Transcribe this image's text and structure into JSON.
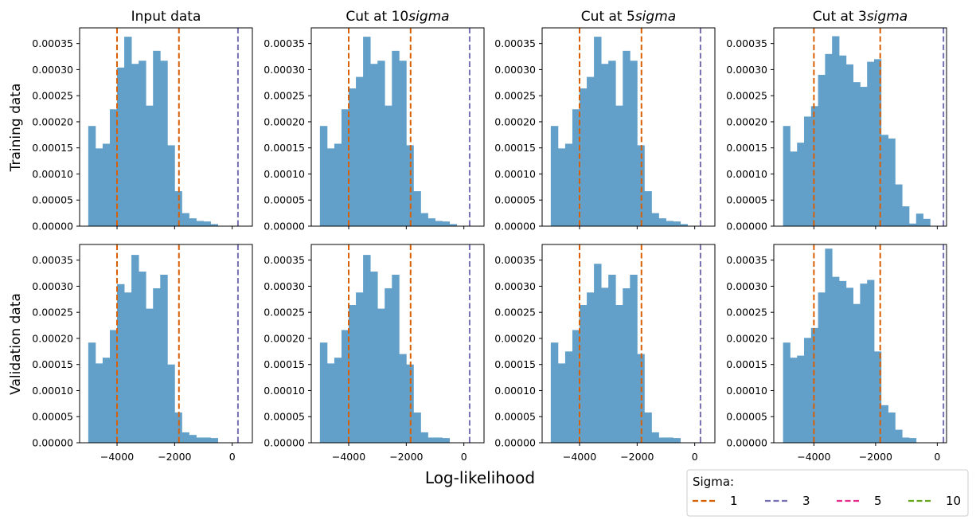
{
  "chart_data": {
    "type": "bar",
    "xlabel": "Log-likelihood",
    "row_labels": [
      "Training data",
      "Validation data"
    ],
    "column_titles": [
      {
        "text": "Input data",
        "sigma": null
      },
      {
        "text": "Cut at 10",
        "sigma": "sigma"
      },
      {
        "text": "Cut at 5",
        "sigma": "sigma"
      },
      {
        "text": "Cut at 3",
        "sigma": "sigma"
      }
    ],
    "ylim": [
      0,
      0.00038
    ],
    "yticks": [
      "0.00000",
      "0.00005",
      "0.00010",
      "0.00015",
      "0.00020",
      "0.00025",
      "0.00030",
      "0.00035"
    ],
    "ytick_values": [
      0,
      5e-05,
      0.0001,
      0.00015,
      0.0002,
      0.00025,
      0.0003,
      0.00035
    ],
    "xticks": [
      "−4000",
      "−2000",
      "0"
    ],
    "xtick_values": [
      -4000,
      -2000,
      0
    ],
    "bar_color": "#62a0ca",
    "sigma_lines": {
      "1": [
        -4000,
        -1850
      ],
      "3": [
        200
      ]
    },
    "legend": {
      "title": "Sigma:",
      "placement": "lower-right",
      "entries": [
        {
          "label": "1",
          "color": "#d95f02"
        },
        {
          "label": "3",
          "color": "#7570b3"
        },
        {
          "label": "5",
          "color": "#e7298a"
        },
        {
          "label": "10",
          "color": "#66a61e"
        }
      ]
    },
    "panels": [
      {
        "row": 0,
        "col": 0,
        "xlim": [
          -5300,
          700
        ],
        "bins": {
          "start": -5000,
          "width": 250
        },
        "values": [
          0.000192,
          0.000149,
          0.000158,
          0.000224,
          0.000304,
          0.000363,
          0.000311,
          0.000317,
          0.000231,
          0.000336,
          0.000317,
          0.000155,
          6.7e-05,
          2.5e-05,
          1.5e-05,
          1e-05,
          9e-06,
          4e-06
        ]
      },
      {
        "row": 0,
        "col": 1,
        "xlim": [
          -5300,
          700
        ],
        "bins": {
          "start": -5000,
          "width": 250
        },
        "values": [
          0.000192,
          0.000149,
          0.000158,
          0.000224,
          0.000264,
          0.000286,
          0.000363,
          0.000311,
          0.000317,
          0.000231,
          0.000336,
          0.000317,
          0.000155,
          6.7e-05,
          2.5e-05,
          1.5e-05,
          1e-05,
          9e-06,
          4e-06
        ]
      },
      {
        "row": 0,
        "col": 2,
        "xlim": [
          -5300,
          700
        ],
        "bins": {
          "start": -5000,
          "width": 250
        },
        "values": [
          0.000192,
          0.000149,
          0.000158,
          0.000224,
          0.000264,
          0.000286,
          0.000363,
          0.000311,
          0.000317,
          0.000231,
          0.000336,
          0.000317,
          0.000155,
          6.7e-05,
          2.5e-05,
          1.5e-05,
          1e-05,
          9e-06,
          4e-06
        ]
      },
      {
        "row": 0,
        "col": 3,
        "xlim": [
          -5300,
          300
        ],
        "bins": {
          "start": -5000,
          "width": 227
        },
        "values": [
          0.000192,
          0.000143,
          0.00016,
          0.00021,
          0.00023,
          0.00029,
          0.00033,
          0.000364,
          0.000327,
          0.00031,
          0.000276,
          0.000267,
          0.000315,
          0.00032,
          0.000175,
          0.000168,
          8e-05,
          3.8e-05,
          5e-06,
          2.4e-05,
          1.4e-05,
          0.0
        ]
      },
      {
        "row": 1,
        "col": 0,
        "xlim": [
          -5300,
          700
        ],
        "bins": {
          "start": -5000,
          "width": 250
        },
        "values": [
          0.000192,
          0.000152,
          0.000163,
          0.000216,
          0.000304,
          0.000288,
          0.00036,
          0.000328,
          0.000257,
          0.000296,
          0.000322,
          0.00015,
          5.8e-05,
          2e-05,
          1.5e-05,
          1e-05,
          1e-05,
          9e-06
        ]
      },
      {
        "row": 1,
        "col": 1,
        "xlim": [
          -5300,
          700
        ],
        "bins": {
          "start": -5000,
          "width": 250
        },
        "values": [
          0.000192,
          0.000152,
          0.000163,
          0.000216,
          0.000264,
          0.000288,
          0.00036,
          0.000328,
          0.000257,
          0.000296,
          0.000322,
          0.00017,
          0.00015,
          5.8e-05,
          2e-05,
          1e-05,
          1e-05,
          9e-06
        ]
      },
      {
        "row": 1,
        "col": 2,
        "xlim": [
          -5300,
          700
        ],
        "bins": {
          "start": -5000,
          "width": 250
        },
        "values": [
          0.000192,
          0.000152,
          0.000175,
          0.000216,
          0.000264,
          0.000288,
          0.000343,
          0.000297,
          0.000322,
          0.000264,
          0.000296,
          0.000322,
          0.00017,
          5.8e-05,
          2e-05,
          1e-05,
          1e-05,
          9e-06
        ]
      },
      {
        "row": 1,
        "col": 3,
        "xlim": [
          -5300,
          300
        ],
        "bins": {
          "start": -5000,
          "width": 227
        },
        "values": [
          0.000192,
          0.000163,
          0.000167,
          0.000201,
          0.00022,
          0.000288,
          0.000372,
          0.000318,
          0.00031,
          0.000297,
          0.000266,
          0.000305,
          0.000312,
          0.000175,
          7.2e-05,
          5.8e-05,
          2.5e-05,
          1e-05,
          9e-06,
          0.0,
          0.0
        ]
      }
    ]
  }
}
